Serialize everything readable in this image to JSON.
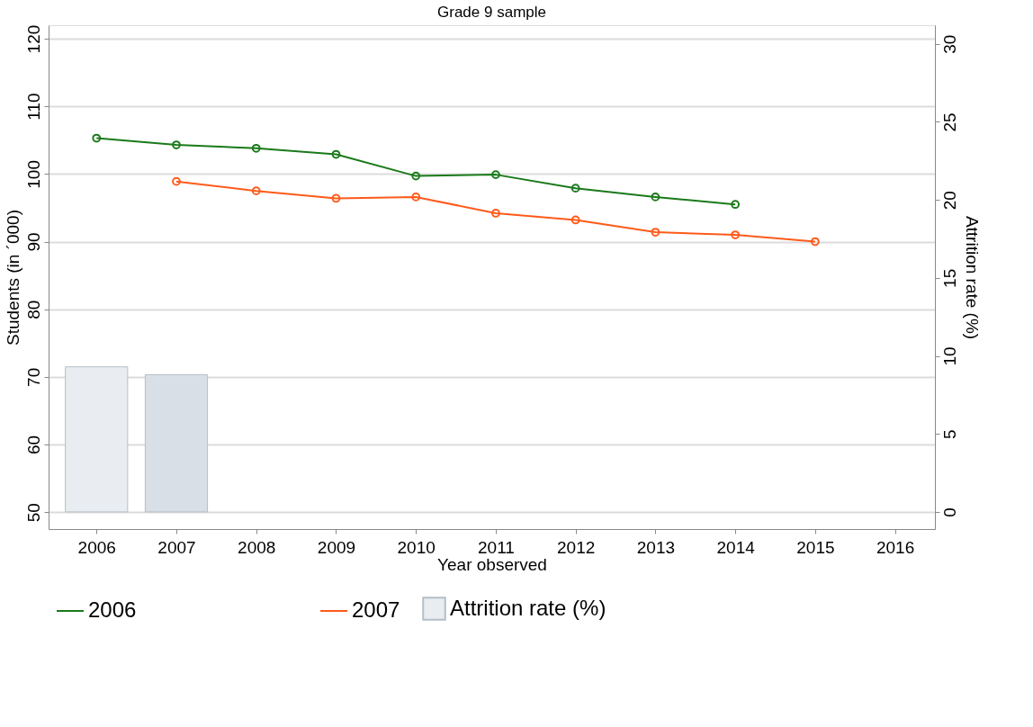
{
  "chart_data": {
    "type": "line",
    "title": "Grade 9 sample",
    "xlabel": "Year observed",
    "ylabel": "Students (in ´000)",
    "y2label": "Attrition rate (%)",
    "xlim": [
      2005.4,
      2016.5
    ],
    "xticks": [
      2006,
      2007,
      2008,
      2009,
      2010,
      2011,
      2012,
      2013,
      2014,
      2015,
      2016
    ],
    "ylim": [
      47.5,
      122
    ],
    "yticks": [
      50,
      60,
      70,
      80,
      90,
      100,
      110,
      120
    ],
    "y2lim": [
      -1.1,
      31.2
    ],
    "y2ticks": [
      0,
      5,
      10,
      15,
      20,
      25,
      30
    ],
    "grid": "y",
    "legend": "bottom",
    "marker": "circle",
    "line_style": "solid",
    "series": [
      {
        "name": "2006",
        "color": "#1a7a1a",
        "x": [
          2006,
          2007,
          2008,
          2009,
          2010,
          2011,
          2012,
          2013,
          2014
        ],
        "values": [
          105.3,
          104.3,
          103.8,
          102.9,
          99.7,
          99.9,
          97.9,
          96.6,
          95.5
        ]
      },
      {
        "name": "2007",
        "color": "#ff5a1a",
        "x": [
          2007,
          2008,
          2009,
          2010,
          2011,
          2012,
          2013,
          2014,
          2015
        ],
        "values": [
          98.9,
          97.5,
          96.4,
          96.6,
          94.2,
          93.2,
          91.4,
          91.0,
          90.0
        ]
      },
      {
        "name": "Attrition rate (%)",
        "type": "bar",
        "axis": "y2",
        "color": "#e9edf1",
        "colors": [
          "#e9edf1",
          "#d9dfe6"
        ],
        "x": [
          2006,
          2007
        ],
        "values": [
          9.3,
          8.8
        ]
      }
    ]
  }
}
